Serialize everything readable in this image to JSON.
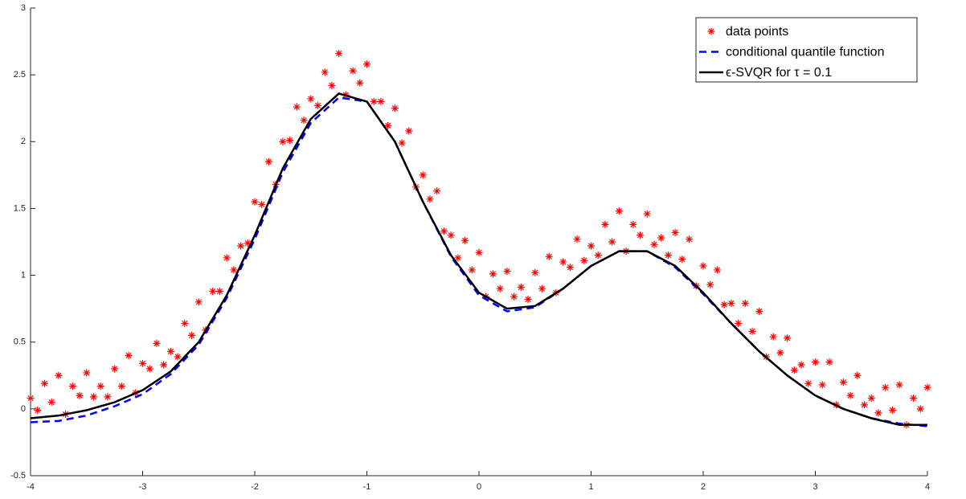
{
  "chart_data": {
    "type": "scatter",
    "xlim": [
      -4,
      4
    ],
    "xticks": [
      -4,
      -3,
      -2,
      -1,
      0,
      1,
      2,
      3,
      4
    ],
    "ylim": [
      -0.5,
      3
    ],
    "yticks": [
      -0.5,
      0,
      0.5,
      1,
      1.5,
      2,
      2.5,
      3
    ],
    "legend": "upper right",
    "series": [
      {
        "name": "data points",
        "type": "scatter",
        "marker": "asterisk",
        "color": "#ff0000",
        "x": [
          -4,
          -3.9375,
          -3.875,
          -3.8125,
          -3.75,
          -3.6875,
          -3.625,
          -3.5625,
          -3.5,
          -3.4375,
          -3.375,
          -3.3125,
          -3.25,
          -3.1875,
          -3.125,
          -3.0625,
          -3,
          -2.9375,
          -2.875,
          -2.8125,
          -2.75,
          -2.6875,
          -2.625,
          -2.5625,
          -2.5,
          -2.4375,
          -2.375,
          -2.3125,
          -2.25,
          -2.1875,
          -2.125,
          -2.0625,
          -2,
          -1.9375,
          -1.875,
          -1.8125,
          -1.75,
          -1.6875,
          -1.625,
          -1.5625,
          -1.5,
          -1.4375,
          -1.375,
          -1.3125,
          -1.25,
          -1.1875,
          -1.125,
          -1.0625,
          -1,
          -0.9375,
          -0.875,
          -0.8125,
          -0.75,
          -0.6875,
          -0.625,
          -0.5625,
          -0.5,
          -0.4375,
          -0.375,
          -0.3125,
          -0.25,
          -0.1875,
          -0.125,
          -0.0625,
          0,
          0.0625,
          0.125,
          0.1875,
          0.25,
          0.3125,
          0.375,
          0.4375,
          0.5,
          0.5625,
          0.625,
          0.6875,
          0.75,
          0.8125,
          0.875,
          0.9375,
          1,
          1.0625,
          1.125,
          1.1875,
          1.25,
          1.3125,
          1.375,
          1.4375,
          1.5,
          1.5625,
          1.625,
          1.6875,
          1.75,
          1.8125,
          1.875,
          1.9375,
          2,
          2.0625,
          2.125,
          2.1875,
          2.25,
          2.3125,
          2.375,
          2.4375,
          2.5,
          2.5625,
          2.625,
          2.6875,
          2.75,
          2.8125,
          2.875,
          2.9375,
          3,
          3.0625,
          3.125,
          3.1875,
          3.25,
          3.3125,
          3.375,
          3.4375,
          3.5,
          3.5625,
          3.625,
          3.6875,
          3.75,
          3.8125,
          3.875,
          3.9375,
          4
        ],
        "values": [
          0.08,
          -0.01,
          0.19,
          0.05,
          0.25,
          -0.04,
          0.17,
          0.1,
          0.27,
          0.09,
          0.17,
          0.09,
          0.3,
          0.17,
          0.4,
          0.12,
          0.34,
          0.3,
          0.49,
          0.33,
          0.43,
          0.39,
          0.64,
          0.55,
          0.8,
          0.59,
          0.88,
          0.88,
          1.13,
          1.04,
          1.22,
          1.24,
          1.55,
          1.53,
          1.85,
          1.68,
          2,
          2.01,
          2.26,
          2.16,
          2.32,
          2.27,
          2.52,
          2.42,
          2.66,
          2.35,
          2.53,
          2.44,
          2.58,
          2.3,
          2.3,
          2.12,
          2.25,
          1.99,
          2.08,
          1.66,
          1.75,
          1.57,
          1.63,
          1.33,
          1.3,
          1.13,
          1.26,
          1.04,
          1.17,
          0.84,
          1.01,
          0.9,
          1.03,
          0.84,
          0.91,
          0.82,
          1.02,
          0.9,
          1.14,
          0.87,
          1.1,
          1.06,
          1.27,
          1.11,
          1.22,
          1.15,
          1.38,
          1.25,
          1.48,
          1.18,
          1.38,
          1.3,
          1.46,
          1.23,
          1.28,
          1.15,
          1.32,
          1.12,
          1.27,
          0.92,
          1.07,
          0.93,
          1.04,
          0.78,
          0.79,
          0.64,
          0.79,
          0.58,
          0.73,
          0.39,
          0.54,
          0.42,
          0.53,
          0.29,
          0.33,
          0.19,
          0.35,
          0.18,
          0.35,
          0.03,
          0.2,
          0.1,
          0.25,
          0.03,
          0.08,
          -0.03,
          0.16,
          -0.01,
          0.18,
          -0.12,
          0.08,
          0,
          0.16
        ]
      },
      {
        "name": "conditional quantile function",
        "type": "line",
        "dashed": true,
        "color": "#0000ff",
        "x": [
          -4,
          -3.75,
          -3.5,
          -3.25,
          -3,
          -2.75,
          -2.5,
          -2.25,
          -2,
          -1.75,
          -1.5,
          -1.25,
          -1,
          -0.75,
          -0.5,
          -0.25,
          0,
          0.25,
          0.5,
          0.75,
          1,
          1.25,
          1.5,
          1.75,
          2,
          2.25,
          2.5,
          2.75,
          3,
          3.25,
          3.5,
          3.75,
          4
        ],
        "values": [
          -0.1,
          -0.09,
          -0.05,
          0.02,
          0.11,
          0.26,
          0.48,
          0.83,
          1.27,
          1.77,
          2.14,
          2.33,
          2.3,
          2,
          1.55,
          1.14,
          0.85,
          0.73,
          0.76,
          0.9,
          1.07,
          1.18,
          1.18,
          1.06,
          0.86,
          0.64,
          0.43,
          0.25,
          0.1,
          0,
          -0.07,
          -0.11,
          -0.13
        ]
      },
      {
        "name": "ϵ-SVQR for τ = 0.1",
        "type": "line",
        "dashed": false,
        "color": "#000000",
        "x": [
          -4,
          -3.75,
          -3.5,
          -3.25,
          -3,
          -2.75,
          -2.5,
          -2.25,
          -2,
          -1.75,
          -1.5,
          -1.25,
          -1,
          -0.75,
          -0.5,
          -0.25,
          0,
          0.25,
          0.5,
          0.75,
          1,
          1.25,
          1.5,
          1.75,
          2,
          2.25,
          2.5,
          2.75,
          3,
          3.25,
          3.5,
          3.75,
          4
        ],
        "values": [
          -0.07,
          -0.05,
          -0.01,
          0.05,
          0.14,
          0.28,
          0.5,
          0.85,
          1.3,
          1.8,
          2.17,
          2.36,
          2.3,
          2,
          1.55,
          1.15,
          0.87,
          0.75,
          0.77,
          0.9,
          1.07,
          1.18,
          1.18,
          1.07,
          0.87,
          0.64,
          0.43,
          0.25,
          0.1,
          0,
          -0.07,
          -0.12,
          -0.12
        ]
      }
    ]
  }
}
